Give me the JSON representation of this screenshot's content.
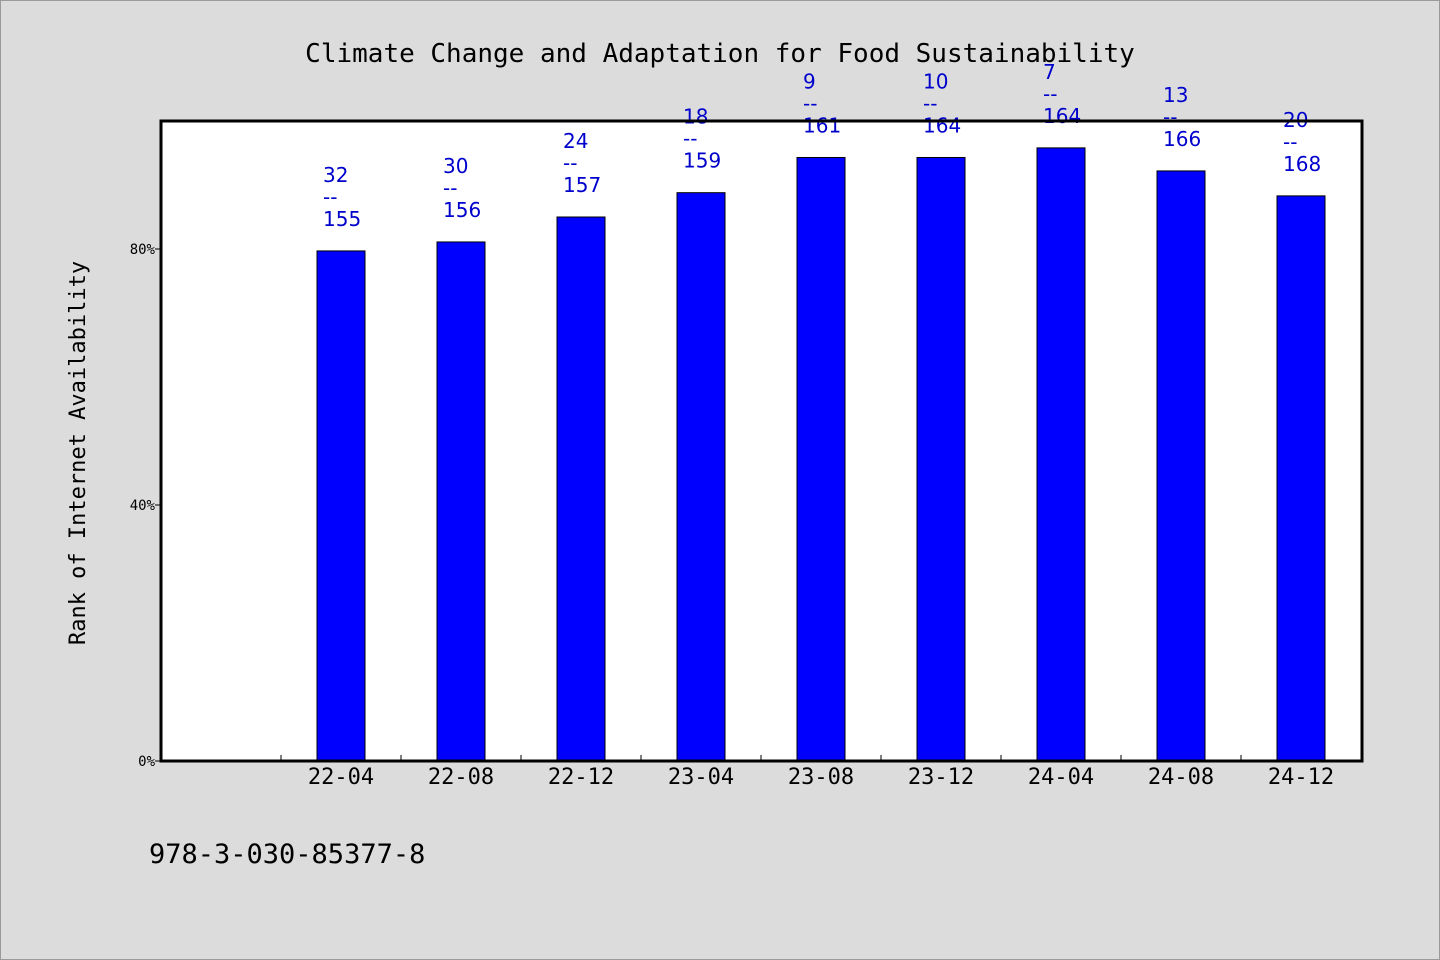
{
  "chart_data": {
    "type": "bar",
    "title": "Climate Change and Adaptation for Food Sustainability",
    "ylabel": "Rank of Internet Availability",
    "xlabel": "",
    "ylim": [
      0,
      100
    ],
    "yticks": [
      {
        "value": 0,
        "label": "0%"
      },
      {
        "value": 40,
        "label": "40%"
      },
      {
        "value": 80,
        "label": "80%"
      }
    ],
    "grid": false,
    "categories": [
      "22-04",
      "22-08",
      "22-12",
      "23-04",
      "23-08",
      "23-12",
      "24-04",
      "24-08",
      "24-12"
    ],
    "values": [
      79.7,
      81.1,
      85.0,
      88.8,
      94.3,
      94.3,
      95.8,
      92.2,
      88.3
    ],
    "annotations": [
      {
        "top": "32",
        "sep": "--",
        "bottom": "155"
      },
      {
        "top": "30",
        "sep": "--",
        "bottom": "156"
      },
      {
        "top": "24",
        "sep": "--",
        "bottom": "157"
      },
      {
        "top": "18",
        "sep": "--",
        "bottom": "159"
      },
      {
        "top": "9",
        "sep": "--",
        "bottom": "161"
      },
      {
        "top": "10",
        "sep": "--",
        "bottom": "164"
      },
      {
        "top": "7",
        "sep": "--",
        "bottom": "164"
      },
      {
        "top": "13",
        "sep": "--",
        "bottom": "166"
      },
      {
        "top": "20",
        "sep": "--",
        "bottom": "168"
      }
    ],
    "colors": {
      "bar": "#0000ff",
      "label": "#0000cc",
      "plot_background": "#ffffff",
      "page_background": "#dcdcdc"
    }
  },
  "footer": {
    "isbn": "978-3-030-85377-8"
  }
}
